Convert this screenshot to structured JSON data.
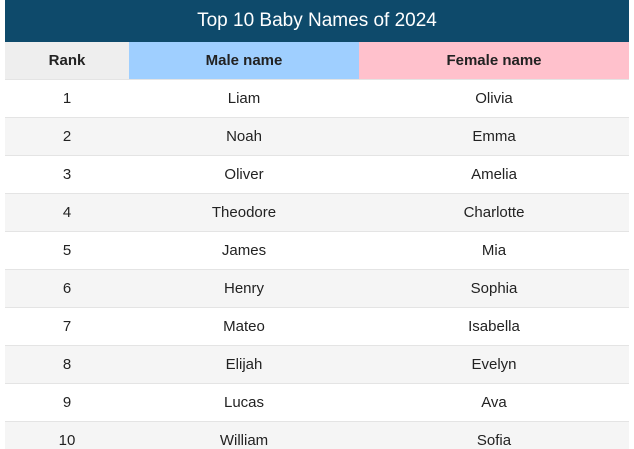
{
  "title": "Top 10 Baby Names of 2024",
  "columns": {
    "rank": "Rank",
    "male": "Male name",
    "female": "Female name"
  },
  "colors": {
    "title_bg": "#0e4a6b",
    "rank_header_bg": "#eeeeee",
    "male_header_bg": "#9fcfff",
    "female_header_bg": "#ffc1cc"
  },
  "rows": [
    {
      "rank": "1",
      "male": "Liam",
      "female": "Olivia"
    },
    {
      "rank": "2",
      "male": "Noah",
      "female": "Emma"
    },
    {
      "rank": "3",
      "male": "Oliver",
      "female": "Amelia"
    },
    {
      "rank": "4",
      "male": "Theodore",
      "female": "Charlotte"
    },
    {
      "rank": "5",
      "male": "James",
      "female": "Mia"
    },
    {
      "rank": "6",
      "male": "Henry",
      "female": "Sophia"
    },
    {
      "rank": "7",
      "male": "Mateo",
      "female": "Isabella"
    },
    {
      "rank": "8",
      "male": "Elijah",
      "female": "Evelyn"
    },
    {
      "rank": "9",
      "male": "Lucas",
      "female": "Ava"
    },
    {
      "rank": "10",
      "male": "William",
      "female": "Sofia"
    }
  ]
}
